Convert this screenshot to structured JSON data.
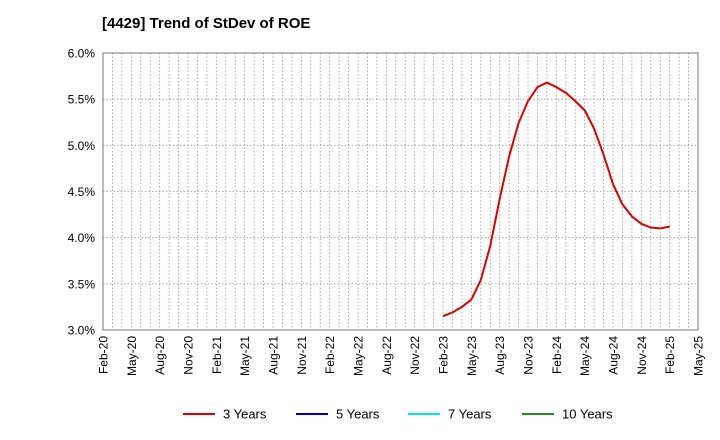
{
  "chart_data": {
    "type": "line",
    "title": "[4429]  Trend of StDev of ROE",
    "xlabel": "",
    "ylabel": "",
    "ylim": [
      3.0,
      6.0
    ],
    "y_ticks": [
      "3.0%",
      "3.5%",
      "4.0%",
      "4.5%",
      "5.0%",
      "5.5%",
      "6.0%"
    ],
    "x_ticks": [
      "Feb-20",
      "May-20",
      "Aug-20",
      "Nov-20",
      "Feb-21",
      "May-21",
      "Aug-21",
      "Nov-21",
      "Feb-22",
      "May-22",
      "Aug-22",
      "Nov-22",
      "Feb-23",
      "May-23",
      "Aug-23",
      "Nov-23",
      "Feb-24",
      "May-24",
      "Aug-24",
      "Nov-24",
      "Feb-25",
      "May-25"
    ],
    "grid": true,
    "legend_position": "bottom",
    "series": [
      {
        "name": "3 Years",
        "color": "#dd0000",
        "points": [
          {
            "x": "2023-02",
            "y": 3.15
          },
          {
            "x": "2023-03",
            "y": 3.19
          },
          {
            "x": "2023-04",
            "y": 3.25
          },
          {
            "x": "2023-05",
            "y": 3.33
          },
          {
            "x": "2023-06",
            "y": 3.54
          },
          {
            "x": "2023-07",
            "y": 3.91
          },
          {
            "x": "2023-08",
            "y": 4.42
          },
          {
            "x": "2023-09",
            "y": 4.88
          },
          {
            "x": "2023-10",
            "y": 5.24
          },
          {
            "x": "2023-11",
            "y": 5.48
          },
          {
            "x": "2023-12",
            "y": 5.63
          },
          {
            "x": "2024-01",
            "y": 5.68
          },
          {
            "x": "2024-02",
            "y": 5.63
          },
          {
            "x": "2024-03",
            "y": 5.57
          },
          {
            "x": "2024-04",
            "y": 5.48
          },
          {
            "x": "2024-05",
            "y": 5.38
          },
          {
            "x": "2024-06",
            "y": 5.18
          },
          {
            "x": "2024-07",
            "y": 4.9
          },
          {
            "x": "2024-08",
            "y": 4.58
          },
          {
            "x": "2024-09",
            "y": 4.36
          },
          {
            "x": "2024-10",
            "y": 4.23
          },
          {
            "x": "2024-11",
            "y": 4.15
          },
          {
            "x": "2024-12",
            "y": 4.11
          },
          {
            "x": "2025-01",
            "y": 4.1
          },
          {
            "x": "2025-02",
            "y": 4.12
          }
        ]
      },
      {
        "name": "5 Years",
        "color": "#0000cc",
        "points": []
      },
      {
        "name": "7 Years",
        "color": "#00e5ee",
        "points": []
      },
      {
        "name": "10 Years",
        "color": "#228b22",
        "points": []
      }
    ]
  }
}
